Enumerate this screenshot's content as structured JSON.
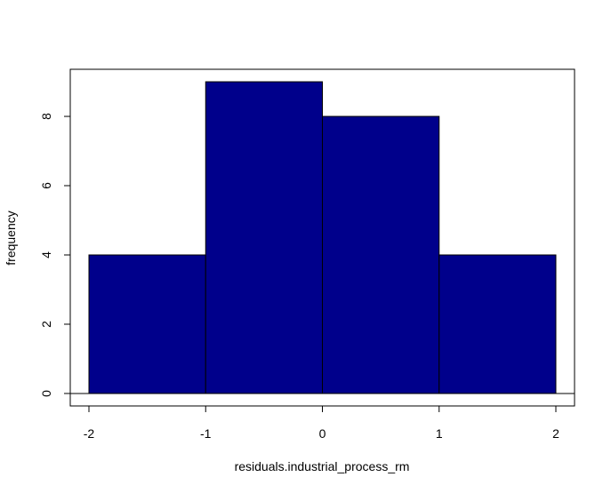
{
  "chart_data": {
    "type": "bar",
    "title": "",
    "xlabel": "residuals.industrial_process_rm",
    "ylabel": "frequency",
    "bins": [
      {
        "start": -2,
        "end": -1,
        "value": 4
      },
      {
        "start": -1,
        "end": 0,
        "value": 9
      },
      {
        "start": 0,
        "end": 1,
        "value": 8
      },
      {
        "start": 1,
        "end": 2,
        "value": 4
      }
    ],
    "xticks": [
      -2,
      -1,
      0,
      1,
      2
    ],
    "yticks": [
      0,
      2,
      4,
      6,
      8
    ],
    "xlim": [
      -2.16,
      2.16
    ],
    "ylim": [
      -0.36,
      9.36
    ],
    "bar_color": "#00008b",
    "bar_edge_color": "#000000",
    "grid": false,
    "legend": "none"
  }
}
